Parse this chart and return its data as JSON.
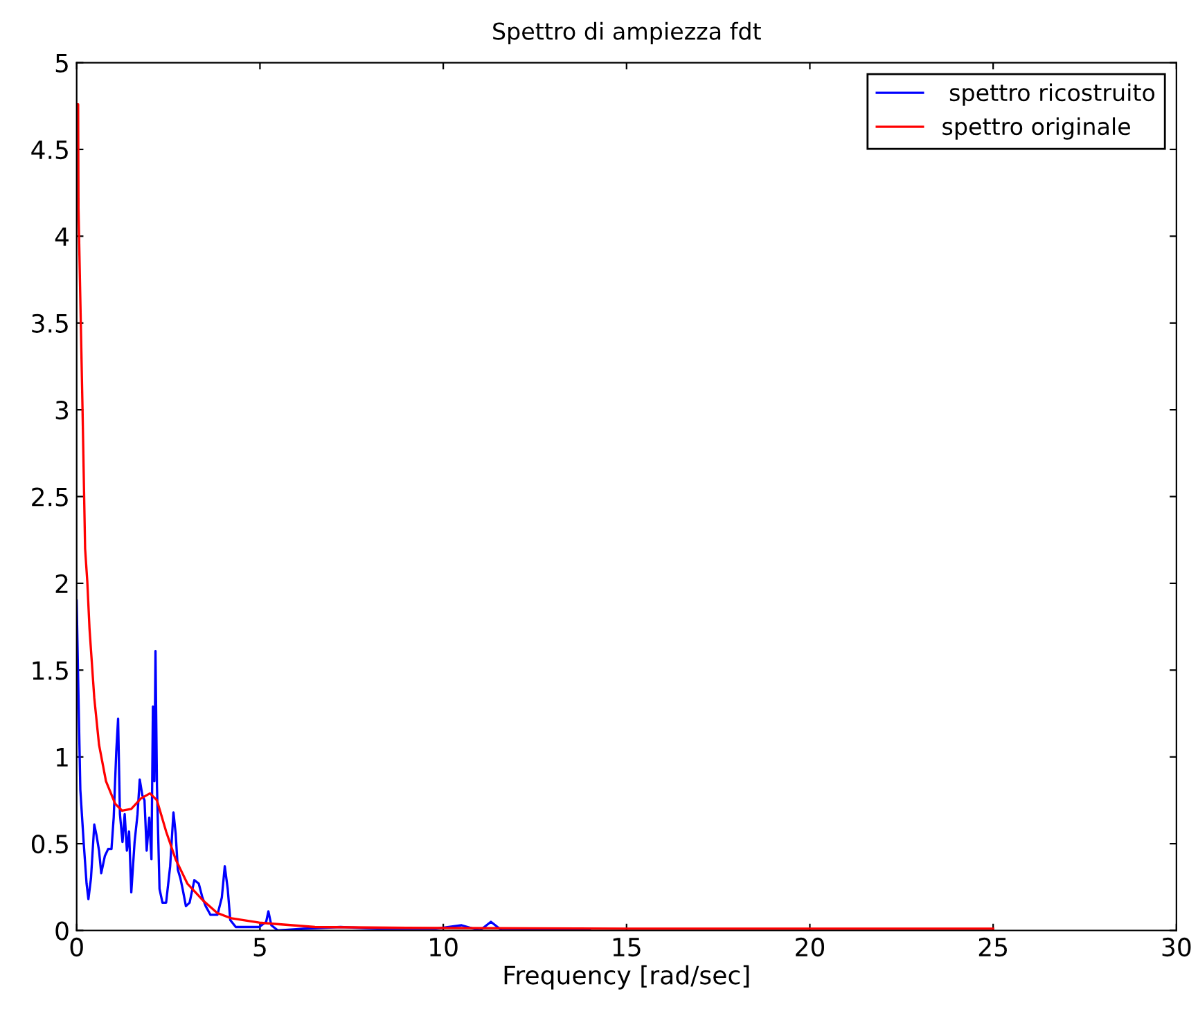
{
  "chart_data": {
    "type": "line",
    "title": "Spettro di ampiezza fdt",
    "xlabel": "Frequency [rad/sec]",
    "xlim": [
      0,
      30
    ],
    "xticks": [
      0,
      5,
      10,
      15,
      20,
      25,
      30
    ],
    "ylim": [
      0,
      5
    ],
    "yticks": [
      0,
      0.5,
      1,
      1.5,
      2,
      2.5,
      3,
      3.5,
      4,
      4.5,
      5
    ],
    "grid": false,
    "legend": "top right",
    "line_style": "solid",
    "marker": "none",
    "series": [
      {
        "name": " spettro ricostruito",
        "color": "#0000ff",
        "x": [
          0,
          0.04,
          0.1,
          0.19,
          0.27,
          0.32,
          0.39,
          0.48,
          0.54,
          0.61,
          0.67,
          0.77,
          0.86,
          0.95,
          1.01,
          1.08,
          1.13,
          1.18,
          1.25,
          1.31,
          1.37,
          1.43,
          1.49,
          1.58,
          1.66,
          1.72,
          1.79,
          1.85,
          1.91,
          1.98,
          2.04,
          2.08,
          2.12,
          2.15,
          2.19,
          2.26,
          2.34,
          2.44,
          2.55,
          2.64,
          2.7,
          2.76,
          2.83,
          2.89,
          2.98,
          3.08,
          3.21,
          3.33,
          3.43,
          3.52,
          3.65,
          3.84,
          3.96,
          4.04,
          4.12,
          4.19,
          4.34,
          4.6,
          4.98,
          5.17,
          5.23,
          5.31,
          5.49,
          6.2,
          7.2,
          8.2,
          9.8,
          10.5,
          11.0,
          11.3,
          11.6,
          14
        ],
        "values": [
          1.9,
          1.45,
          0.81,
          0.51,
          0.27,
          0.18,
          0.3,
          0.61,
          0.55,
          0.46,
          0.33,
          0.43,
          0.47,
          0.47,
          0.65,
          1.03,
          1.22,
          0.67,
          0.51,
          0.67,
          0.46,
          0.57,
          0.22,
          0.51,
          0.67,
          0.87,
          0.78,
          0.75,
          0.46,
          0.65,
          0.41,
          1.29,
          0.86,
          1.61,
          0.83,
          0.24,
          0.16,
          0.16,
          0.37,
          0.68,
          0.56,
          0.35,
          0.3,
          0.24,
          0.14,
          0.16,
          0.29,
          0.27,
          0.19,
          0.14,
          0.09,
          0.09,
          0.19,
          0.37,
          0.24,
          0.06,
          0.02,
          0.02,
          0.02,
          0.05,
          0.11,
          0.03,
          0.0,
          0.01,
          0.02,
          0.01,
          0.01,
          0.03,
          0.0,
          0.05,
          0.0,
          0.0
        ]
      },
      {
        "name": "spettro originale",
        "color": "#ff0000",
        "x": [
          0,
          0.04,
          0.05,
          0.16,
          0.23,
          0.29,
          0.35,
          0.48,
          0.61,
          0.8,
          1.05,
          1.24,
          1.49,
          1.75,
          2.0,
          2.19,
          2.44,
          2.7,
          3.02,
          3.46,
          3.84,
          4.22,
          4.98,
          5.4,
          6.5,
          9,
          15,
          25
        ],
        "values": [
          4.76,
          4.76,
          4.16,
          3.0,
          2.2,
          2.01,
          1.74,
          1.34,
          1.07,
          0.86,
          0.73,
          0.69,
          0.7,
          0.76,
          0.79,
          0.75,
          0.57,
          0.41,
          0.27,
          0.17,
          0.1,
          0.07,
          0.045,
          0.038,
          0.02,
          0.015,
          0.01,
          0.01
        ]
      }
    ]
  }
}
